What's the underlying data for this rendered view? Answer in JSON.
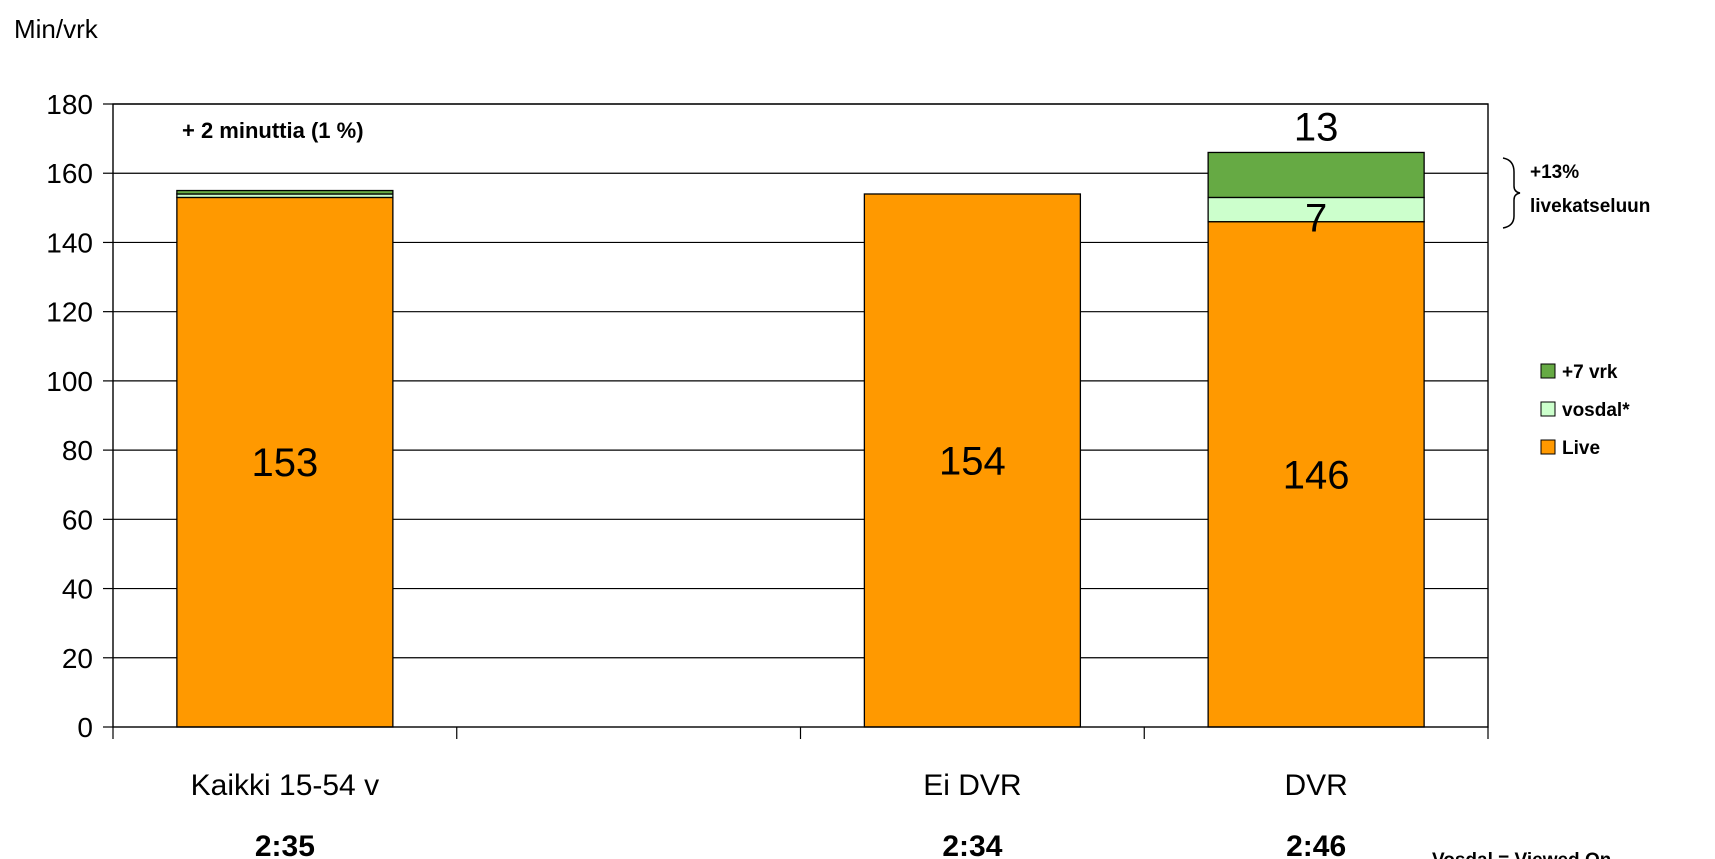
{
  "chart_data": {
    "type": "bar",
    "stacked": true,
    "ylabel": "Min/vrk",
    "ylim": [
      0,
      180
    ],
    "yticks": [
      0,
      20,
      40,
      60,
      80,
      100,
      120,
      140,
      160,
      180
    ],
    "grid": true,
    "category_slots": [
      "Kaikki 15-54 v",
      "",
      "Ei DVR",
      "DVR"
    ],
    "categories": [
      "Kaikki 15-54 v",
      "Ei DVR",
      "DVR"
    ],
    "category_times": [
      "2:35",
      "2:34",
      "2:46"
    ],
    "series": [
      {
        "name": "Live",
        "color": "#FF9900",
        "values": [
          153,
          154,
          146
        ]
      },
      {
        "name": "vosdal*",
        "color": "#CCFFCC",
        "values": [
          1,
          0,
          7
        ]
      },
      {
        "name": "+7 vrk",
        "color": "#66AA44",
        "values": [
          1,
          0,
          13
        ]
      }
    ],
    "data_labels": {
      "Live": [
        "153",
        "154",
        "146"
      ],
      "vosdal*": [
        "",
        "",
        "7"
      ],
      "+7 vrk": [
        "",
        "",
        "13"
      ]
    },
    "legend": {
      "placement": "right",
      "order": [
        "+7 vrk",
        "vosdal*",
        "Live"
      ]
    },
    "annotations": {
      "first_bar_note": "+ 2 minuttia (1 %)",
      "bracket_line1": "+13%",
      "bracket_line2": "livekatseluun",
      "footnote": "Vosdal = Viewed On"
    }
  }
}
